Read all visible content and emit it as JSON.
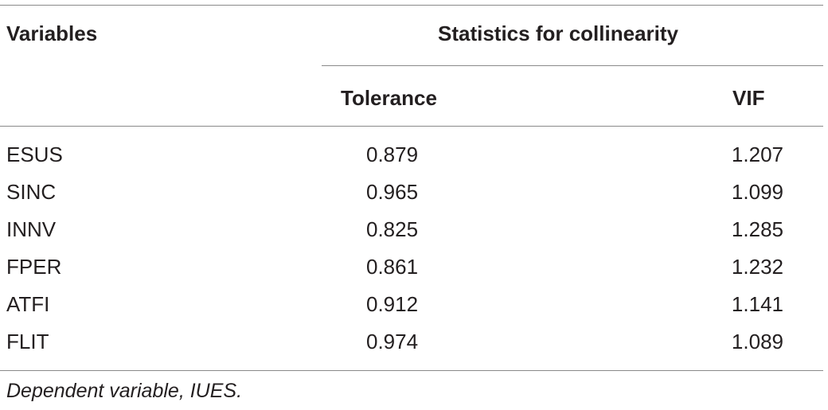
{
  "table": {
    "header": {
      "variables": "Variables",
      "group": "Statistics for collinearity",
      "tolerance": "Tolerance",
      "vif": "VIF"
    },
    "rows": [
      {
        "variable": "ESUS",
        "tolerance": "0.879",
        "vif": "1.207"
      },
      {
        "variable": "SINC",
        "tolerance": "0.965",
        "vif": "1.099"
      },
      {
        "variable": "INNV",
        "tolerance": "0.825",
        "vif": "1.285"
      },
      {
        "variable": "FPER",
        "tolerance": "0.861",
        "vif": "1.232"
      },
      {
        "variable": "ATFI",
        "tolerance": "0.912",
        "vif": "1.141"
      },
      {
        "variable": "FLIT",
        "tolerance": "0.974",
        "vif": "1.089"
      }
    ],
    "footnote": "Dependent variable, IUES."
  }
}
